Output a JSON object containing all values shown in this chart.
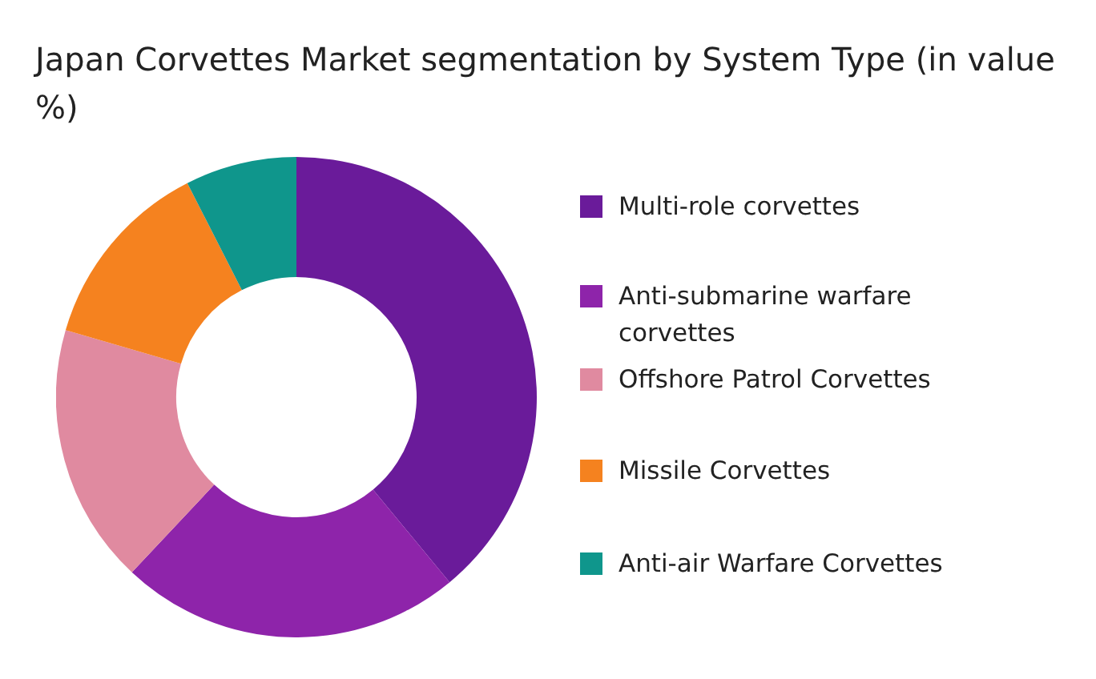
{
  "chart_data": {
    "type": "donut",
    "title": "Japan Corvettes Market segmentation by System Type (in value %)",
    "categories": [
      "Multi-role corvettes",
      "Anti-submarine warfare corvettes",
      "Offshore Patrol Corvettes",
      "Missile Corvettes",
      "Anti-air Warfare Corvettes"
    ],
    "values": [
      39,
      23,
      17.5,
      13,
      7.5
    ],
    "colors": [
      "#6a1b9a",
      "#8e24aa",
      "#e08aa0",
      "#f5821f",
      "#0f968c"
    ],
    "legend": "right"
  }
}
